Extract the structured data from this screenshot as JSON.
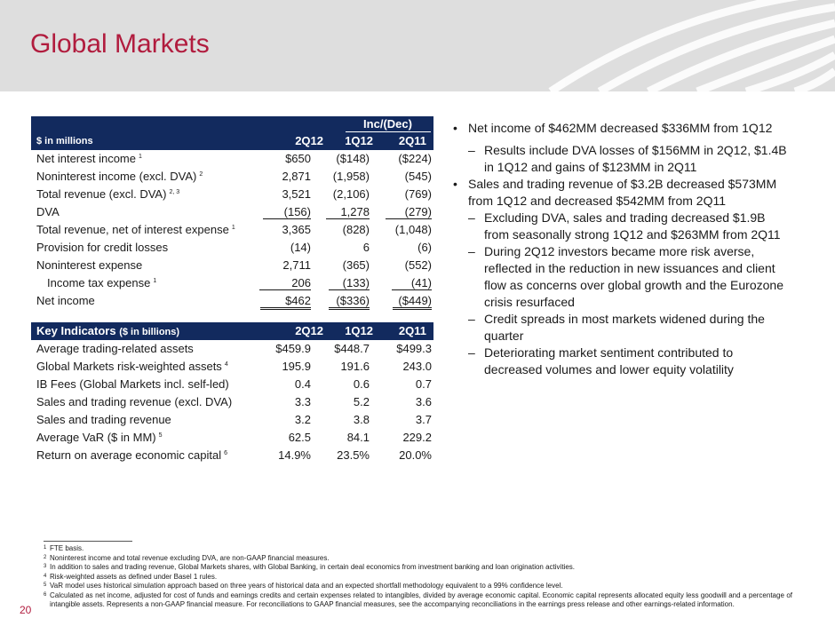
{
  "title": "Global Markets",
  "page_number": "20",
  "fin_table": {
    "group_label": "Inc/(Dec)",
    "units_label": "$ in millions",
    "columns": [
      "2Q12",
      "1Q12",
      "2Q11"
    ],
    "rows": [
      {
        "label": "Net interest income",
        "sup": "1",
        "v": [
          "$650",
          "($148)",
          "($224)"
        ]
      },
      {
        "label": "Noninterest income (excl. DVA)",
        "sup": "2",
        "v": [
          "2,871",
          "(1,958)",
          "(545)"
        ]
      },
      {
        "label": "Total revenue (excl. DVA)",
        "sup": "2, 3",
        "v": [
          "3,521",
          "(2,106)",
          "(769)"
        ]
      },
      {
        "label": "DVA",
        "sup": "",
        "v": [
          "(156)",
          "1,278",
          "(279)"
        ]
      },
      {
        "label": "Total revenue, net of interest expense",
        "sup": "1",
        "v": [
          "3,365",
          "(828)",
          "(1,048)"
        ]
      },
      {
        "label": "Provision for credit losses",
        "sup": "",
        "v": [
          "(14)",
          "6",
          "(6)"
        ]
      },
      {
        "label": "Noninterest expense",
        "sup": "",
        "v": [
          "2,711",
          "(365)",
          "(552)"
        ]
      },
      {
        "label": "Income tax expense",
        "sup": "1",
        "v": [
          "206",
          "(133)",
          "(41)"
        ]
      },
      {
        "label": "Net income",
        "sup": "",
        "v": [
          "$462",
          "($336)",
          "($449)"
        ]
      }
    ]
  },
  "key_table": {
    "title": "Key Indicators",
    "title_small": "($ in billions)",
    "columns": [
      "2Q12",
      "1Q12",
      "2Q11"
    ],
    "rows": [
      {
        "label": "Average trading-related assets",
        "sup": "",
        "v": [
          "$459.9",
          "$448.7",
          "$499.3"
        ]
      },
      {
        "label": "Global Markets risk-weighted assets",
        "sup": "4",
        "v": [
          "195.9",
          "191.6",
          "243.0"
        ]
      },
      {
        "label": "IB Fees (Global Markets incl. self-led)",
        "sup": "",
        "v": [
          "0.4",
          "0.6",
          "0.7"
        ]
      },
      {
        "label": "Sales and trading revenue (excl. DVA)",
        "sup": "",
        "v": [
          "3.3",
          "5.2",
          "3.6"
        ]
      },
      {
        "label": "Sales and trading revenue",
        "sup": "",
        "v": [
          "3.2",
          "3.8",
          "3.7"
        ]
      },
      {
        "label": "Average VaR ($ in MM)",
        "sup": "5",
        "v": [
          "62.5",
          "84.1",
          "229.2"
        ]
      },
      {
        "label": "Return on average economic capital",
        "sup": "6",
        "v": [
          "14.9%",
          "23.5%",
          "20.0%"
        ]
      }
    ]
  },
  "bullets": [
    {
      "text": "Net income of $462MM decreased $336MM from 1Q12",
      "subs": [
        "Results include DVA losses of $156MM in 2Q12, $1.4B in 1Q12 and gains of $123MM in 2Q11"
      ]
    },
    {
      "text": "Sales and trading revenue of $3.2B decreased $573MM from 1Q12 and decreased $542MM from 2Q11",
      "subs": [
        "Excluding DVA, sales and trading decreased $1.9B from seasonally strong 1Q12 and $263MM from 2Q11",
        "During 2Q12 investors became more risk averse, reflected in the reduction in new issuances and client flow as concerns over global growth and the Eurozone crisis resurfaced",
        "Credit spreads in most markets widened during the quarter",
        "Deteriorating market sentiment contributed to decreased volumes and lower equity volatility"
      ]
    }
  ],
  "footnotes": [
    {
      "num": "1",
      "text": "FTE basis."
    },
    {
      "num": "2",
      "text": "Noninterest income and total revenue excluding DVA, are non-GAAP financial measures."
    },
    {
      "num": "3",
      "text": "In addition to sales and trading revenue, Global Markets shares, with Global Banking, in certain deal economics from investment banking and loan origination activities."
    },
    {
      "num": "4",
      "text": "Risk-weighted assets as defined under Basel 1 rules."
    },
    {
      "num": "5",
      "text": "VaR model uses historical simulation approach based on three years of historical data and an expected shortfall methodology equivalent to a 99% confidence level."
    },
    {
      "num": "6",
      "text": "Calculated as net income, adjusted for cost of funds and earnings credits and certain expenses related to intangibles, divided by average economic capital. Economic capital represents allocated equity less goodwill and a percentage of intangible assets. Represents a non-GAAP financial measure. For reconciliations to GAAP financial measures, see the accompanying reconciliations in the earnings press release and other earnings-related information."
    }
  ]
}
